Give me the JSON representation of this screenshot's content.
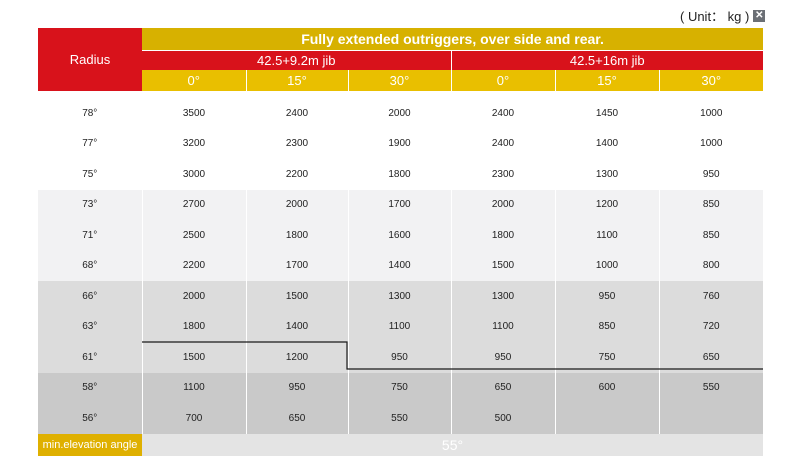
{
  "unit_label": "( Unit： kg )",
  "unit_icon": "image-placeholder-icon",
  "table": {
    "radius_header": "Radius",
    "title": "Fully extended outriggers, over side and rear.",
    "jib_groups": [
      "42.5+9.2m jib",
      "42.5+16m jib"
    ],
    "angles": [
      "0°",
      "15°",
      "30°",
      "0°",
      "15°",
      "30°"
    ],
    "rows": [
      {
        "radius": "78°",
        "values": [
          "3500",
          "2400",
          "2000",
          "2400",
          "1450",
          "1000"
        ]
      },
      {
        "radius": "77°",
        "values": [
          "3200",
          "2300",
          "1900",
          "2400",
          "1400",
          "1000"
        ]
      },
      {
        "radius": "75°",
        "values": [
          "3000",
          "2200",
          "1800",
          "2300",
          "1300",
          "950"
        ]
      },
      {
        "radius": "73°",
        "values": [
          "2700",
          "2000",
          "1700",
          "2000",
          "1200",
          "850"
        ]
      },
      {
        "radius": "71°",
        "values": [
          "2500",
          "1800",
          "1600",
          "1800",
          "1100",
          "850"
        ]
      },
      {
        "radius": "68°",
        "values": [
          "2200",
          "1700",
          "1400",
          "1500",
          "1000",
          "800"
        ]
      },
      {
        "radius": "66°",
        "values": [
          "2000",
          "1500",
          "1300",
          "1300",
          "950",
          "760"
        ]
      },
      {
        "radius": "63°",
        "values": [
          "1800",
          "1400",
          "1100",
          "1100",
          "850",
          "720"
        ]
      },
      {
        "radius": "61°",
        "values": [
          "1500",
          "1200",
          "950",
          "950",
          "750",
          "650"
        ]
      },
      {
        "radius": "58°",
        "values": [
          "1100",
          "950",
          "750",
          "650",
          "600",
          "550"
        ]
      },
      {
        "radius": "56°",
        "values": [
          "700",
          "650",
          "550",
          "500",
          "",
          ""
        ]
      }
    ],
    "min_label": "min.elevation angle",
    "min_value": "55°"
  }
}
